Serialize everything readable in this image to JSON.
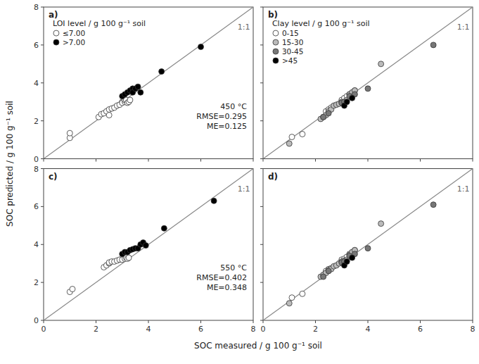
{
  "xlabel": "SOC measured / g 100 g⁻¹ soil",
  "ylabel": "SOC predicted / g 100 g⁻¹ soil",
  "chart_data": [
    {
      "type": "scatter",
      "title": "a)",
      "marker": "circle",
      "xlim": [
        0,
        8
      ],
      "ylim": [
        0,
        8
      ],
      "xticks": [
        0,
        2,
        4,
        6,
        8
      ],
      "yticks": [
        0,
        2,
        4,
        6,
        8
      ],
      "tick_labels": "y",
      "legend": "upper left",
      "legend_title": "LOI level / g 100 g⁻¹ soil",
      "annotations": [
        "1:1",
        "450 °C\nRMSE=0.295\nME=0.125"
      ],
      "series": [
        {
          "type": "line",
          "line_style": "solid",
          "color": "#888888",
          "x": [
            0,
            8
          ],
          "values": [
            0,
            8
          ]
        },
        {
          "type": "scatter",
          "name": "≤7.00",
          "color": "#ffffff",
          "x": [
            1.0,
            1.0,
            2.1,
            2.2,
            2.3,
            2.4,
            2.5,
            2.5,
            2.6,
            2.7,
            2.8,
            2.9,
            3.0,
            3.0,
            3.1,
            3.1,
            3.15,
            3.2,
            3.25,
            3.3
          ],
          "values": [
            1.1,
            1.35,
            2.2,
            2.35,
            2.4,
            2.5,
            2.6,
            2.3,
            2.65,
            2.7,
            2.8,
            2.85,
            3.0,
            2.95,
            3.0,
            3.1,
            3.1,
            2.95,
            3.0,
            3.1
          ]
        },
        {
          "type": "scatter",
          "name": ">7.00",
          "color": "#000000",
          "x": [
            3.0,
            3.1,
            3.2,
            3.3,
            3.4,
            3.4,
            3.5,
            3.6,
            3.7,
            4.5,
            6.0
          ],
          "values": [
            3.3,
            3.4,
            3.5,
            3.6,
            3.7,
            3.5,
            3.7,
            3.8,
            3.5,
            4.6,
            5.9
          ]
        }
      ]
    },
    {
      "type": "scatter",
      "title": "b)",
      "marker": "circle",
      "xlim": [
        0,
        8
      ],
      "ylim": [
        0,
        8
      ],
      "xticks": [
        0,
        2,
        4,
        6,
        8
      ],
      "yticks": [
        0,
        2,
        4,
        6,
        8
      ],
      "tick_labels": false,
      "legend": "upper left",
      "legend_title": "Clay level / g 100 g⁻¹ soil",
      "annotations": [
        "1:1"
      ],
      "series": [
        {
          "type": "line",
          "line_style": "solid",
          "color": "#888888",
          "x": [
            0,
            8
          ],
          "values": [
            0,
            8
          ]
        },
        {
          "type": "scatter",
          "name": "0-15",
          "color": "#ffffff",
          "x": [
            1.1,
            1.5,
            2.4,
            2.5,
            2.6,
            3.0,
            3.1,
            3.2,
            3.3,
            3.5
          ],
          "values": [
            1.15,
            1.3,
            2.5,
            2.6,
            2.7,
            3.1,
            3.2,
            3.3,
            3.4,
            3.6
          ]
        },
        {
          "type": "scatter",
          "name": "15-30",
          "color": "#bbbbbb",
          "x": [
            1.0,
            2.2,
            2.3,
            2.4,
            2.5,
            2.6,
            2.7,
            2.8,
            2.9,
            3.0,
            3.1,
            3.2,
            3.3,
            3.4,
            3.5,
            4.5
          ],
          "values": [
            0.8,
            2.1,
            2.2,
            2.3,
            2.5,
            2.6,
            2.8,
            2.85,
            2.9,
            3.0,
            3.0,
            3.1,
            3.4,
            3.5,
            3.6,
            5.0
          ]
        },
        {
          "type": "scatter",
          "name": "30-45",
          "color": "#777777",
          "x": [
            2.3,
            2.5,
            3.0,
            3.1,
            3.3,
            3.5,
            4.0,
            6.5
          ],
          "values": [
            2.2,
            2.4,
            2.95,
            3.0,
            3.3,
            3.4,
            3.7,
            6.0
          ]
        },
        {
          "type": "scatter",
          "name": ">45",
          "color": "#000000",
          "x": [
            3.1,
            3.2,
            3.4
          ],
          "values": [
            2.8,
            3.0,
            3.2
          ]
        }
      ]
    },
    {
      "type": "scatter",
      "title": "c)",
      "marker": "circle",
      "xlim": [
        0,
        8
      ],
      "ylim": [
        0,
        8
      ],
      "xticks": [
        0,
        2,
        4,
        6,
        8
      ],
      "yticks": [
        0,
        2,
        4,
        6,
        8
      ],
      "tick_labels": true,
      "annotations": [
        "1:1",
        "550 °C\nRMSE=0.402\nME=0.348"
      ],
      "series": [
        {
          "type": "line",
          "line_style": "solid",
          "color": "#888888",
          "x": [
            0,
            8
          ],
          "values": [
            0,
            8
          ]
        },
        {
          "type": "scatter",
          "color": "#ffffff",
          "x": [
            1.0,
            1.1,
            2.3,
            2.4,
            2.5,
            2.5,
            2.6,
            2.7,
            2.8,
            2.9,
            3.0,
            3.1,
            3.15,
            3.2,
            3.25
          ],
          "values": [
            1.5,
            1.65,
            2.8,
            2.9,
            3.0,
            3.05,
            3.1,
            3.1,
            3.15,
            3.2,
            3.2,
            3.25,
            3.3,
            3.25,
            3.3
          ]
        },
        {
          "type": "scatter",
          "color": "#000000",
          "x": [
            3.0,
            3.1,
            3.2,
            3.3,
            3.4,
            3.5,
            3.6,
            3.7,
            3.8,
            3.9,
            4.6,
            6.5
          ],
          "values": [
            3.5,
            3.6,
            3.6,
            3.7,
            3.75,
            3.8,
            3.8,
            4.0,
            4.1,
            3.95,
            4.85,
            6.3
          ]
        }
      ]
    },
    {
      "type": "scatter",
      "title": "d)",
      "marker": "circle",
      "xlim": [
        0,
        8
      ],
      "ylim": [
        0,
        8
      ],
      "xticks": [
        0,
        2,
        4,
        6,
        8
      ],
      "yticks": [
        0,
        2,
        4,
        6,
        8
      ],
      "tick_labels": "x",
      "annotations": [
        "1:1"
      ],
      "series": [
        {
          "type": "line",
          "line_style": "solid",
          "color": "#888888",
          "x": [
            0,
            8
          ],
          "values": [
            0,
            8
          ]
        },
        {
          "type": "scatter",
          "color": "#ffffff",
          "x": [
            1.1,
            1.5,
            2.4,
            2.5,
            2.6,
            3.0,
            3.1,
            3.2,
            3.3,
            3.5
          ],
          "values": [
            1.2,
            1.4,
            2.6,
            2.7,
            2.75,
            3.2,
            3.25,
            3.35,
            3.5,
            3.7
          ]
        },
        {
          "type": "scatter",
          "color": "#bbbbbb",
          "x": [
            1.0,
            2.2,
            2.3,
            2.4,
            2.5,
            2.6,
            2.7,
            2.8,
            2.9,
            3.0,
            3.1,
            3.2,
            3.3,
            3.4,
            3.5,
            4.5
          ],
          "values": [
            0.9,
            2.3,
            2.4,
            2.5,
            2.65,
            2.7,
            2.85,
            2.9,
            3.0,
            3.1,
            3.15,
            3.2,
            3.45,
            3.6,
            3.7,
            5.1
          ]
        },
        {
          "type": "scatter",
          "color": "#777777",
          "x": [
            2.3,
            2.5,
            3.0,
            3.1,
            3.3,
            3.5,
            4.0,
            6.5
          ],
          "values": [
            2.3,
            2.6,
            3.05,
            3.1,
            3.4,
            3.5,
            3.8,
            6.1
          ]
        },
        {
          "type": "scatter",
          "color": "#000000",
          "x": [
            3.1,
            3.2,
            3.4
          ],
          "values": [
            2.9,
            3.1,
            3.3
          ]
        }
      ]
    }
  ]
}
